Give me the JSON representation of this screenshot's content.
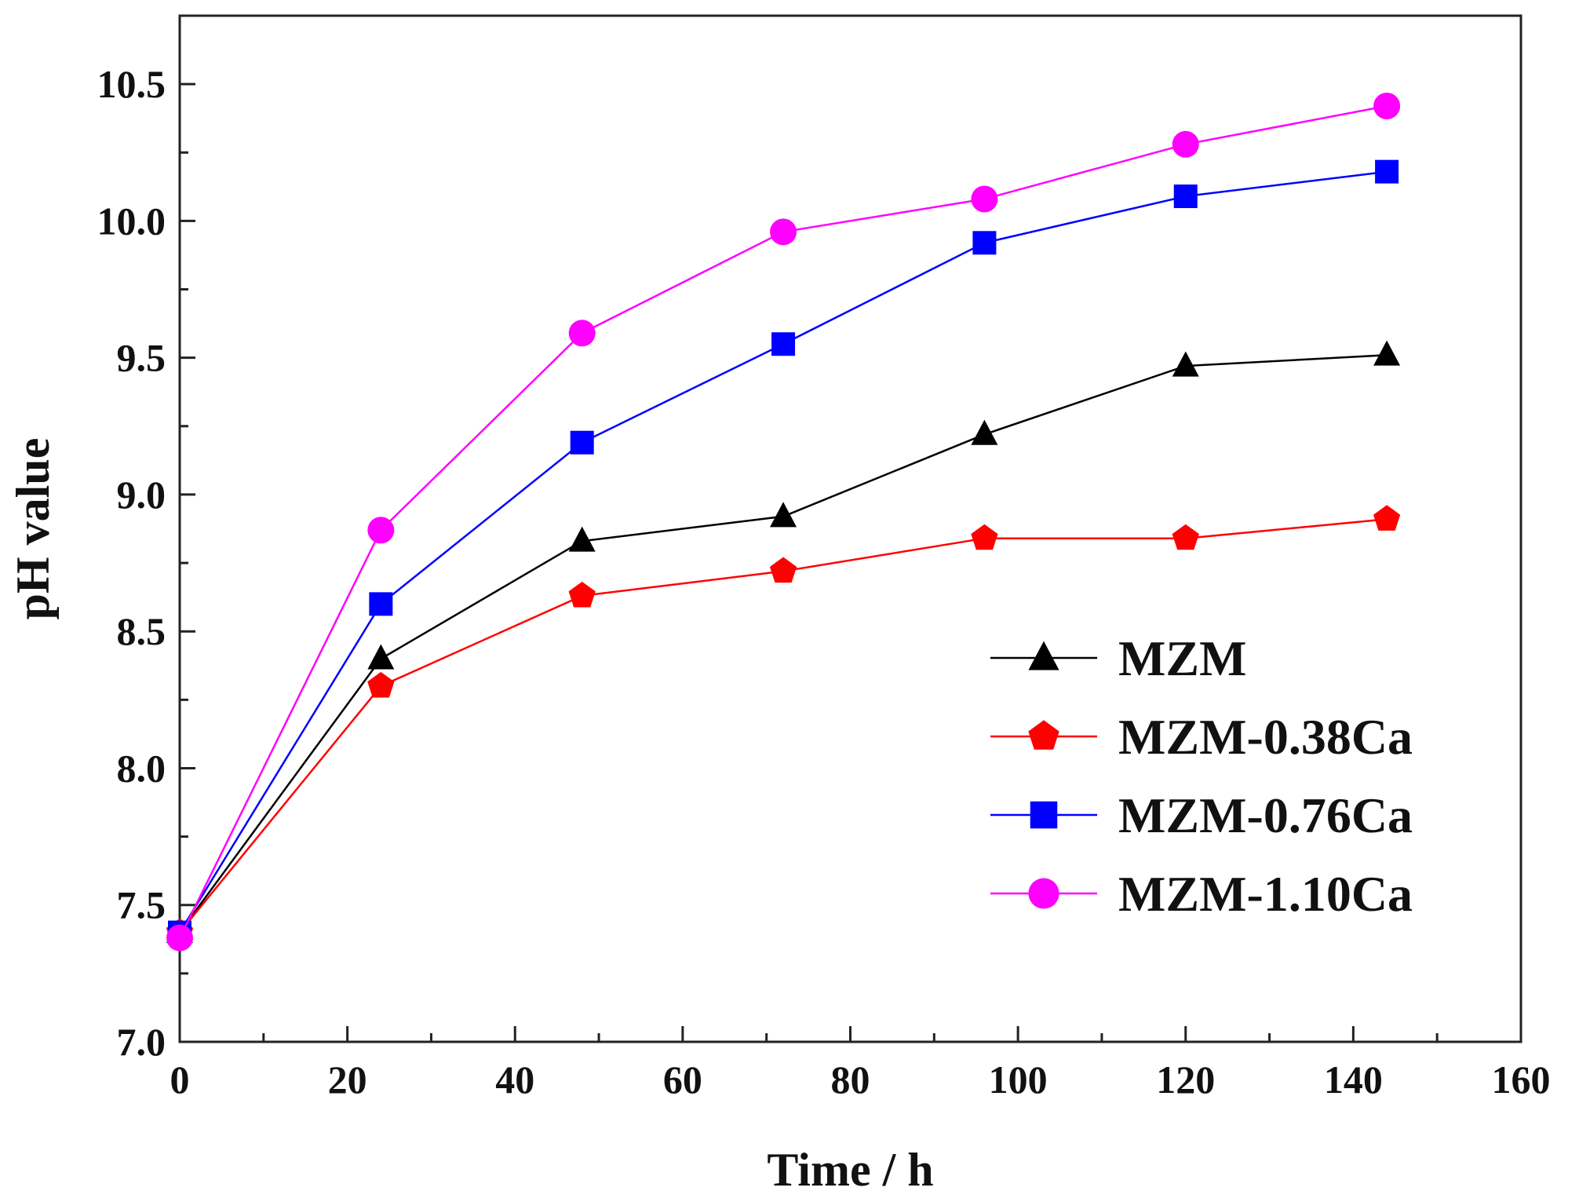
{
  "chart_data": {
    "type": "line",
    "title": "",
    "xlabel": "Time / h",
    "ylabel": "pH value",
    "xlim": [
      0,
      160
    ],
    "ylim": [
      7.0,
      10.75
    ],
    "xticks": [
      0,
      20,
      40,
      60,
      80,
      100,
      120,
      140,
      160
    ],
    "xtick_labels": [
      "0",
      "20",
      "40",
      "60",
      "80",
      "100",
      "120",
      "140",
      "160"
    ],
    "yticks": [
      7.0,
      7.5,
      8.0,
      8.5,
      9.0,
      9.5,
      10.0,
      10.5
    ],
    "ytick_labels": [
      "7.0",
      "7.5",
      "8.0",
      "8.5",
      "9.0",
      "9.5",
      "10.0",
      "10.5"
    ],
    "grid": false,
    "legend_position": "bottom-right",
    "x": [
      0,
      24,
      48,
      72,
      96,
      120,
      144
    ],
    "series": [
      {
        "name": "MZM",
        "color": "#000000",
        "marker": "triangle",
        "values": [
          7.4,
          8.4,
          8.83,
          8.92,
          9.22,
          9.47,
          9.51
        ]
      },
      {
        "name": "MZM-0.38Ca",
        "color": "#ff0000",
        "marker": "pentagon",
        "values": [
          7.4,
          8.3,
          8.63,
          8.72,
          8.84,
          8.84,
          8.91
        ]
      },
      {
        "name": "MZM-0.76Ca",
        "color": "#0000ff",
        "marker": "square",
        "values": [
          7.4,
          8.6,
          9.19,
          9.55,
          9.92,
          10.09,
          10.18
        ]
      },
      {
        "name": "MZM-1.10Ca",
        "color": "#ff00ff",
        "marker": "circle",
        "values": [
          7.38,
          8.87,
          9.59,
          9.96,
          10.08,
          10.28,
          10.42
        ]
      }
    ]
  }
}
